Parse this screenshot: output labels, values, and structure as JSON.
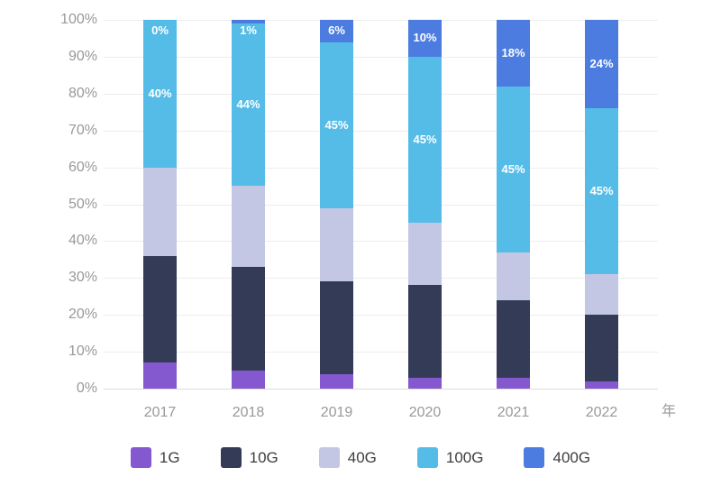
{
  "chart_data": {
    "type": "bar",
    "stacked": true,
    "percent_stack": true,
    "title": "",
    "categories": [
      "2017",
      "2018",
      "2019",
      "2020",
      "2021",
      "2022"
    ],
    "series": [
      {
        "name": "1G",
        "color": "#8458CF",
        "values": [
          7,
          5,
          4,
          3,
          3,
          2
        ],
        "show_labels": false
      },
      {
        "name": "10G",
        "color": "#333B57",
        "values": [
          29,
          28,
          25,
          25,
          21,
          18
        ],
        "show_labels": false
      },
      {
        "name": "40G",
        "color": "#C3C7E3",
        "values": [
          24,
          22,
          20,
          17,
          13,
          11
        ],
        "show_labels": false
      },
      {
        "name": "100G",
        "color": "#55BCE8",
        "values": [
          40,
          44,
          45,
          45,
          45,
          45
        ],
        "show_labels": true,
        "labels": [
          "40%",
          "44%",
          "45%",
          "45%",
          "45%",
          "45%"
        ]
      },
      {
        "name": "400G",
        "color": "#4C7CDF",
        "values": [
          0,
          1,
          6,
          10,
          18,
          24
        ],
        "show_labels": true,
        "labels": [
          "0%",
          "1%",
          "6%",
          "10%",
          "18%",
          "24%"
        ]
      }
    ],
    "y_axis": {
      "min": 0,
      "max": 100,
      "ticks": [
        "0%",
        "10%",
        "20%",
        "30%",
        "40%",
        "50%",
        "60%",
        "70%",
        "80%",
        "90%",
        "100%"
      ],
      "grid": true
    },
    "x_axis": {
      "name": "年",
      "labels": [
        "2017",
        "2018",
        "2019",
        "2020",
        "2021",
        "2022"
      ]
    },
    "legend": {
      "position": "bottom",
      "items": [
        "1G",
        "10G",
        "40G",
        "100G",
        "400G"
      ]
    },
    "colors": {
      "bar_label_text": "#ffffff",
      "axis_text": "#999999",
      "legend_text": "#3d3d3d",
      "gridline": "#ededed",
      "axis_line": "#dcdcdc",
      "background": "#ffffff"
    }
  }
}
